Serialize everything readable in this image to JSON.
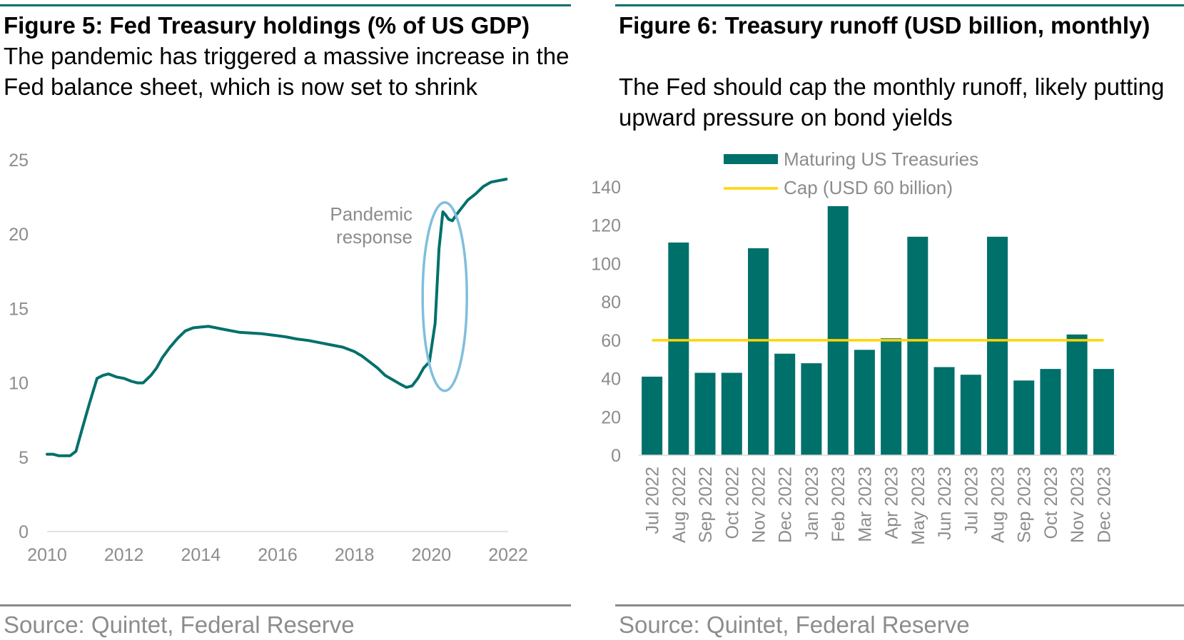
{
  "left": {
    "title": "Figure 5: Fed Treasury holdings (% of US GDP)",
    "subtitle": "The pandemic has triggered a massive increase in the Fed balance sheet, which is now set to shrink",
    "source": "Source: Quintet, Federal Reserve"
  },
  "right": {
    "title": "Figure 6: Treasury runoff (USD billion, monthly)",
    "subtitle": "The Fed should cap the monthly runoff, likely putting upward pressure on bond yields",
    "source": "Source: Quintet, Federal Reserve"
  },
  "colors": {
    "accent": "#00706b",
    "cap": "#ffd600",
    "ellipse": "#7fbfdc",
    "axis_text": "#8c8c8c"
  },
  "chart_data": [
    {
      "type": "line",
      "title": "Figure 5: Fed Treasury holdings (% of US GDP)",
      "xlim": [
        2010,
        2022
      ],
      "ylim": [
        0,
        25
      ],
      "x_ticks": [
        "2010",
        "2012",
        "2014",
        "2016",
        "2018",
        "2020",
        "2022"
      ],
      "y_ticks": [
        "0",
        "5",
        "10",
        "15",
        "20",
        "25"
      ],
      "grid": false,
      "annotation": {
        "text_lines": [
          "Pandemic",
          "response"
        ],
        "x": 2020.35,
        "y": 15.8
      },
      "series": [
        {
          "x": [
            2010.0,
            2010.15,
            2010.3,
            2010.45,
            2010.6,
            2010.75,
            2010.9,
            2011.1,
            2011.3,
            2011.45,
            2011.6,
            2011.8,
            2012.0,
            2012.2,
            2012.35,
            2012.5,
            2012.7,
            2012.85,
            2013.0,
            2013.2,
            2013.4,
            2013.6,
            2013.8,
            2014.0,
            2014.2,
            2014.4,
            2014.6,
            2014.8,
            2015.0,
            2015.3,
            2015.6,
            2015.9,
            2016.2,
            2016.5,
            2016.8,
            2017.1,
            2017.4,
            2017.7,
            2018.0,
            2018.2,
            2018.4,
            2018.6,
            2018.8,
            2019.0,
            2019.2,
            2019.35,
            2019.5,
            2019.65,
            2019.8,
            2019.95,
            2020.1,
            2020.2,
            2020.3,
            2020.37,
            2020.45,
            2020.55,
            2020.65,
            2020.8,
            2020.95,
            2021.15,
            2021.35,
            2021.55,
            2021.75,
            2021.95
          ],
          "y": [
            5.2,
            5.2,
            5.1,
            5.1,
            5.1,
            5.4,
            6.8,
            8.6,
            10.3,
            10.5,
            10.6,
            10.4,
            10.3,
            10.1,
            10.0,
            10.0,
            10.5,
            11.0,
            11.7,
            12.4,
            13.0,
            13.5,
            13.7,
            13.75,
            13.8,
            13.7,
            13.6,
            13.5,
            13.4,
            13.35,
            13.3,
            13.2,
            13.1,
            12.95,
            12.85,
            12.7,
            12.55,
            12.4,
            12.1,
            11.8,
            11.4,
            11.0,
            10.5,
            10.2,
            9.9,
            9.7,
            9.8,
            10.3,
            11.0,
            11.4,
            14.0,
            19.0,
            21.5,
            21.3,
            21.0,
            20.9,
            21.3,
            21.8,
            22.3,
            22.7,
            23.2,
            23.5,
            23.6,
            23.7
          ]
        }
      ]
    },
    {
      "type": "bar",
      "title": "Figure 6: Treasury runoff (USD billion, monthly)",
      "ylim": [
        0,
        140
      ],
      "y_ticks": [
        "0",
        "20",
        "40",
        "60",
        "80",
        "100",
        "120",
        "140"
      ],
      "grid": false,
      "legend_placement": "top",
      "categories": [
        "Jul 2022",
        "Aug 2022",
        "Sep 2022",
        "Oct 2022",
        "Nov 2022",
        "Dec 2022",
        "Jan 2023",
        "Feb 2023",
        "Mar 2023",
        "Apr 2023",
        "May 2023",
        "Jun 2023",
        "Jul 2023",
        "Aug 2023",
        "Sep 2023",
        "Oct 2023",
        "Nov 2023",
        "Dec 2023"
      ],
      "series": [
        {
          "name": "Maturing US Treasuries",
          "type": "bar",
          "values": [
            41,
            111,
            43,
            43,
            108,
            53,
            48,
            130,
            55,
            61,
            114,
            46,
            42,
            114,
            39,
            45,
            63,
            45
          ]
        },
        {
          "name": "Cap (USD 60 billion)",
          "type": "line",
          "values": [
            60,
            60,
            60,
            60,
            60,
            60,
            60,
            60,
            60,
            60,
            60,
            60,
            60,
            60,
            60,
            60,
            60,
            60
          ]
        }
      ]
    }
  ]
}
